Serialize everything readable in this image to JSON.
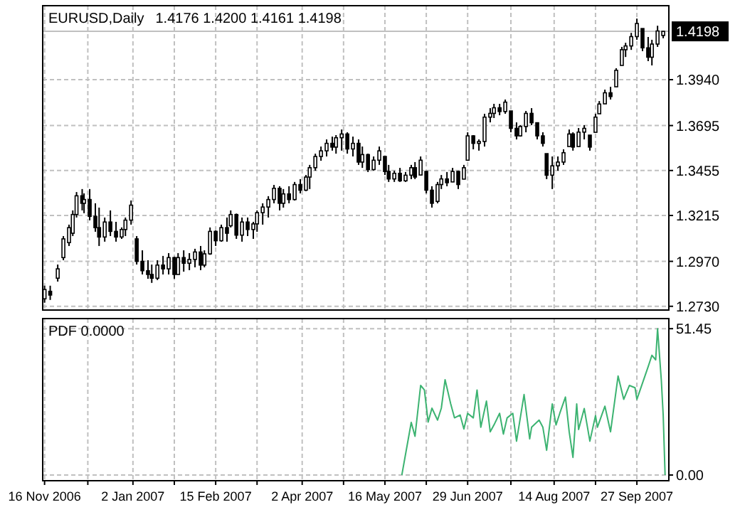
{
  "chart_data": [
    {
      "type": "candlestick",
      "title": "EURUSD,Daily",
      "subtitle": "1.4176 1.4200 1.4161 1.4198",
      "color": "#000000",
      "x": [
        "2006-11-16",
        "2006-11-19",
        "2006-11-23",
        "2006-11-26",
        "2006-11-29",
        "2006-12-01",
        "2006-12-03",
        "2006-12-06",
        "2006-12-07",
        "2006-12-10",
        "2006-12-13",
        "2006-12-15",
        "2006-12-18",
        "2006-12-21",
        "2006-12-24",
        "2006-12-27",
        "2006-12-29",
        "2007-01-01",
        "2007-01-04",
        "2007-01-07",
        "2007-01-10",
        "2007-01-12",
        "2007-01-15",
        "2007-01-18",
        "2007-01-21",
        "2007-01-24",
        "2007-01-26",
        "2007-01-29",
        "2007-02-01",
        "2007-02-04",
        "2007-02-07",
        "2007-02-09",
        "2007-02-12",
        "2007-02-15",
        "2007-02-18",
        "2007-02-21",
        "2007-02-23",
        "2007-02-26",
        "2007-03-01",
        "2007-03-04",
        "2007-03-07",
        "2007-03-09",
        "2007-03-12",
        "2007-03-15",
        "2007-03-18",
        "2007-03-21",
        "2007-03-23",
        "2007-03-26",
        "2007-03-29",
        "2007-04-01",
        "2007-04-04",
        "2007-04-06",
        "2007-04-09",
        "2007-04-12",
        "2007-04-15",
        "2007-04-18",
        "2007-04-20",
        "2007-04-23",
        "2007-04-26",
        "2007-04-29",
        "2007-05-02",
        "2007-05-04",
        "2007-05-07",
        "2007-05-10",
        "2007-05-13",
        "2007-05-16",
        "2007-05-18",
        "2007-05-21",
        "2007-05-24",
        "2007-05-27",
        "2007-05-30",
        "2007-06-01",
        "2007-06-04",
        "2007-06-07",
        "2007-06-10",
        "2007-06-13",
        "2007-06-15",
        "2007-06-18",
        "2007-06-21",
        "2007-06-24",
        "2007-06-27",
        "2007-06-29",
        "2007-07-02",
        "2007-07-05",
        "2007-07-08",
        "2007-07-11",
        "2007-07-13",
        "2007-07-16",
        "2007-07-19",
        "2007-07-22",
        "2007-07-25",
        "2007-07-27",
        "2007-07-30",
        "2007-08-02",
        "2007-08-05",
        "2007-08-08",
        "2007-08-10",
        "2007-08-13",
        "2007-08-16",
        "2007-08-19",
        "2007-08-22",
        "2007-08-24",
        "2007-08-27",
        "2007-08-30",
        "2007-09-02",
        "2007-09-05",
        "2007-09-07",
        "2007-09-10",
        "2007-09-13",
        "2007-09-16",
        "2007-09-19",
        "2007-09-21",
        "2007-09-24",
        "2007-09-27",
        "2007-09-30",
        "2007-10-03",
        "2007-10-05",
        "2007-10-08",
        "2007-10-11"
      ],
      "ohlc": [
        [
          1.277,
          1.284,
          1.2749,
          1.282
        ],
        [
          1.281,
          1.284,
          1.2764,
          1.279
        ],
        [
          1.288,
          1.2953,
          1.2862,
          1.293
        ],
        [
          1.299,
          1.3105,
          1.2976,
          1.309
        ],
        [
          1.307,
          1.3166,
          1.3052,
          1.315
        ],
        [
          1.312,
          1.3242,
          1.3105,
          1.322
        ],
        [
          1.322,
          1.334,
          1.3204,
          1.332
        ],
        [
          1.332,
          1.3356,
          1.3242,
          1.328
        ],
        [
          1.328,
          1.3333,
          1.3227,
          1.33
        ],
        [
          1.33,
          1.3356,
          1.3189,
          1.321
        ],
        [
          1.321,
          1.328,
          1.3128,
          1.315
        ],
        [
          1.315,
          1.3257,
          1.3052,
          1.31
        ],
        [
          1.31,
          1.3204,
          1.3075,
          1.318
        ],
        [
          1.318,
          1.3242,
          1.3105,
          1.313
        ],
        [
          1.313,
          1.3181,
          1.3075,
          1.31
        ],
        [
          1.31,
          1.3151,
          1.309,
          1.314
        ],
        [
          1.314,
          1.3204,
          1.3105,
          1.319
        ],
        [
          1.319,
          1.3295,
          1.3166,
          1.327
        ],
        [
          1.309,
          1.3105,
          1.2953,
          1.297
        ],
        [
          1.297,
          1.3029,
          1.29,
          1.292
        ],
        [
          1.292,
          1.2976,
          1.2877,
          1.29
        ],
        [
          1.29,
          1.2953,
          1.2855,
          1.288
        ],
        [
          1.288,
          1.2976,
          1.287,
          1.295
        ],
        [
          1.295,
          1.2999,
          1.29,
          1.293
        ],
        [
          1.293,
          1.3014,
          1.29,
          1.299
        ],
        [
          1.299,
          1.2995,
          1.2877,
          1.29
        ],
        [
          1.29,
          1.3014,
          1.29,
          1.299
        ],
        [
          1.299,
          1.3029,
          1.2915,
          1.296
        ],
        [
          1.296,
          1.3014,
          1.2923,
          1.298
        ],
        [
          1.298,
          1.3037,
          1.2938,
          1.302
        ],
        [
          1.302,
          1.3052,
          1.2923,
          1.295
        ],
        [
          1.295,
          1.3029,
          1.2938,
          1.301
        ],
        [
          1.301,
          1.3151,
          1.3005,
          1.313
        ],
        [
          1.313,
          1.3135,
          1.3052,
          1.308
        ],
        [
          1.308,
          1.3166,
          1.3075,
          1.315
        ],
        [
          1.315,
          1.3204,
          1.3075,
          1.312
        ],
        [
          1.316,
          1.3242,
          1.3151,
          1.322
        ],
        [
          1.322,
          1.3225,
          1.309,
          1.311
        ],
        [
          1.311,
          1.3204,
          1.3075,
          1.318
        ],
        [
          1.318,
          1.3204,
          1.3105,
          1.314
        ],
        [
          1.314,
          1.3181,
          1.309,
          1.317
        ],
        [
          1.317,
          1.3242,
          1.3128,
          1.323
        ],
        [
          1.323,
          1.328,
          1.3166,
          1.326
        ],
        [
          1.326,
          1.3318,
          1.3204,
          1.33
        ],
        [
          1.33,
          1.3378,
          1.328,
          1.336
        ],
        [
          1.336,
          1.3371,
          1.3242,
          1.328
        ],
        [
          1.328,
          1.3356,
          1.3257,
          1.333
        ],
        [
          1.333,
          1.3371,
          1.328,
          1.33
        ],
        [
          1.33,
          1.3394,
          1.3295,
          1.338
        ],
        [
          1.338,
          1.3409,
          1.3333,
          1.335
        ],
        [
          1.335,
          1.3431,
          1.3345,
          1.342
        ],
        [
          1.342,
          1.3485,
          1.3356,
          1.347
        ],
        [
          1.347,
          1.3545,
          1.3454,
          1.353
        ],
        [
          1.353,
          1.3583,
          1.3507,
          1.356
        ],
        [
          1.356,
          1.3621,
          1.353,
          1.36
        ],
        [
          1.36,
          1.3636,
          1.3561,
          1.358
        ],
        [
          1.358,
          1.3644,
          1.3545,
          1.363
        ],
        [
          1.363,
          1.3674,
          1.3561,
          1.365
        ],
        [
          1.365,
          1.3659,
          1.3545,
          1.357
        ],
        [
          1.357,
          1.3636,
          1.353,
          1.36
        ],
        [
          1.36,
          1.3621,
          1.3485,
          1.35
        ],
        [
          1.35,
          1.3583,
          1.3469,
          1.354
        ],
        [
          1.354,
          1.3545,
          1.3447,
          1.346
        ],
        [
          1.346,
          1.353,
          1.3455,
          1.351
        ],
        [
          1.351,
          1.3583,
          1.3485,
          1.356
        ],
        [
          1.353,
          1.353,
          1.3431,
          1.345
        ],
        [
          1.345,
          1.3485,
          1.3394,
          1.341
        ],
        [
          1.341,
          1.3454,
          1.3394,
          1.344
        ],
        [
          1.344,
          1.3469,
          1.3394,
          1.34
        ],
        [
          1.34,
          1.3447,
          1.3394,
          1.343
        ],
        [
          1.343,
          1.3485,
          1.3409,
          1.347
        ],
        [
          1.347,
          1.35,
          1.3409,
          1.342
        ],
        [
          1.3431,
          1.353,
          1.3431,
          1.351
        ],
        [
          1.345,
          1.3454,
          1.3333,
          1.335
        ],
        [
          1.335,
          1.3371,
          1.3257,
          1.328
        ],
        [
          1.329,
          1.3394,
          1.328,
          1.338
        ],
        [
          1.338,
          1.3431,
          1.3356,
          1.341
        ],
        [
          1.341,
          1.3447,
          1.3371,
          1.339
        ],
        [
          1.3394,
          1.3469,
          1.3394,
          1.345
        ],
        [
          1.345,
          1.3454,
          1.3356,
          1.338
        ],
        [
          1.3409,
          1.3485,
          1.3409,
          1.347
        ],
        [
          1.351,
          1.3659,
          1.3507,
          1.364
        ],
        [
          1.364,
          1.3644,
          1.3568,
          1.36
        ],
        [
          1.36,
          1.3621,
          1.3561,
          1.361
        ],
        [
          1.361,
          1.3758,
          1.3583,
          1.374
        ],
        [
          1.374,
          1.3788,
          1.3712,
          1.376
        ],
        [
          1.376,
          1.3811,
          1.3735,
          1.379
        ],
        [
          1.379,
          1.3811,
          1.375,
          1.377
        ],
        [
          1.377,
          1.3834,
          1.3758,
          1.382
        ],
        [
          1.3773,
          1.3773,
          1.3659,
          1.368
        ],
        [
          1.368,
          1.3712,
          1.3621,
          1.364
        ],
        [
          1.364,
          1.3697,
          1.3636,
          1.369
        ],
        [
          1.369,
          1.3773,
          1.3659,
          1.376
        ],
        [
          1.376,
          1.3788,
          1.3697,
          1.371
        ],
        [
          1.371,
          1.3712,
          1.3621,
          1.364
        ],
        [
          1.364,
          1.3659,
          1.3583,
          1.36
        ],
        [
          1.3545,
          1.3545,
          1.3409,
          1.343
        ],
        [
          1.343,
          1.353,
          1.3356,
          1.348
        ],
        [
          1.348,
          1.353,
          1.3454,
          1.35
        ],
        [
          1.35,
          1.3568,
          1.3485,
          1.355
        ],
        [
          1.3583,
          1.3674,
          1.3583,
          1.365
        ],
        [
          1.365,
          1.3659,
          1.3561,
          1.358
        ],
        [
          1.3583,
          1.3682,
          1.3583,
          1.366
        ],
        [
          1.366,
          1.3697,
          1.3621,
          1.368
        ],
        [
          1.3644,
          1.3644,
          1.3561,
          1.358
        ],
        [
          1.3659,
          1.3758,
          1.3659,
          1.374
        ],
        [
          1.3758,
          1.3826,
          1.3758,
          1.381
        ],
        [
          1.3811,
          1.3887,
          1.3811,
          1.387
        ],
        [
          1.387,
          1.3902,
          1.3834,
          1.385
        ],
        [
          1.3902,
          1.4001,
          1.3902,
          1.399
        ],
        [
          1.4016,
          1.4115,
          1.4016,
          1.41
        ],
        [
          1.41,
          1.4137,
          1.4061,
          1.412
        ],
        [
          1.412,
          1.419,
          1.4099,
          1.417
        ],
        [
          1.417,
          1.4266,
          1.4153,
          1.424
        ],
        [
          1.4213,
          1.4213,
          1.4092,
          1.411
        ],
        [
          1.411,
          1.4168,
          1.4039,
          1.406
        ],
        [
          1.406,
          1.4153,
          1.4016,
          1.413
        ],
        [
          1.413,
          1.4228,
          1.4115,
          1.42
        ],
        [
          1.4176,
          1.42,
          1.4161,
          1.4198
        ]
      ],
      "xlim": [
        "2006-11-15",
        "2007-10-14"
      ],
      "ylim": [
        1.271,
        1.4335
      ],
      "xticks": [
        {
          "value": "2006-11-16",
          "label": null
        },
        {
          "value": "2006-12-09",
          "label": null
        },
        {
          "value": "2007-01-02",
          "label": null
        },
        {
          "value": "2007-01-24",
          "label": null
        },
        {
          "value": "2007-02-15",
          "label": null
        },
        {
          "value": "2007-03-09",
          "label": null
        },
        {
          "value": "2007-04-02",
          "label": null
        },
        {
          "value": "2007-04-24",
          "label": null
        },
        {
          "value": "2007-05-16",
          "label": null
        },
        {
          "value": "2007-06-07",
          "label": null
        },
        {
          "value": "2007-06-29",
          "label": null
        },
        {
          "value": "2007-07-22",
          "label": null
        },
        {
          "value": "2007-08-14",
          "label": null
        },
        {
          "value": "2007-09-05",
          "label": null
        },
        {
          "value": "2007-09-27",
          "label": null
        }
      ],
      "yticks": [
        {
          "value": 1.273,
          "label": "1.2730"
        },
        {
          "value": 1.297,
          "label": "1.2970"
        },
        1.3215,
        1.3455,
        1.3695,
        {
          "value": 1.394,
          "label": "1.3940"
        }
      ],
      "grid": true,
      "tick_labels": "y",
      "ref_lines": [
        {
          "axis": "y",
          "value": 1.4198,
          "label": "1.4198",
          "color": "#c0c0c0"
        }
      ]
    },
    {
      "type": "line",
      "title": "PDF 0.0000",
      "series": [
        {
          "color": "#3cb371",
          "x": [
            "2007-05-25",
            "2007-05-30",
            "2007-06-01",
            "2007-06-04",
            "2007-06-06",
            "2007-06-08",
            "2007-06-10",
            "2007-06-13",
            "2007-06-15",
            "2007-06-17",
            "2007-06-20",
            "2007-06-22",
            "2007-06-25",
            "2007-06-27",
            "2007-06-29",
            "2007-07-02",
            "2007-07-04",
            "2007-07-06",
            "2007-07-09",
            "2007-07-11",
            "2007-07-13",
            "2007-07-16",
            "2007-07-18",
            "2007-07-20",
            "2007-07-23",
            "2007-07-25",
            "2007-07-29",
            "2007-08-01",
            "2007-08-02",
            "2007-08-06",
            "2007-08-08",
            "2007-08-10",
            "2007-08-13",
            "2007-08-15",
            "2007-08-17",
            "2007-08-20",
            "2007-08-22",
            "2007-08-24",
            "2007-08-26",
            "2007-08-27",
            "2007-08-30",
            "2007-09-02",
            "2007-09-05",
            "2007-09-06",
            "2007-09-10",
            "2007-09-13",
            "2007-09-17",
            "2007-09-20",
            "2007-09-23",
            "2007-09-26",
            "2007-09-27",
            "2007-10-03",
            "2007-10-05",
            "2007-10-07",
            "2007-10-08",
            "2007-10-10",
            "2007-10-11",
            "2007-10-12"
          ],
          "values": [
            0,
            18.5,
            13.6,
            31.5,
            29.9,
            18.6,
            23.5,
            19.3,
            23.5,
            33.5,
            25,
            20.1,
            21.1,
            16.2,
            21.7,
            20.1,
            29.9,
            16.8,
            26,
            15.2,
            17.6,
            21.7,
            14.4,
            20.1,
            21.7,
            11.9,
            28.3,
            12.7,
            16.8,
            19.3,
            16.8,
            8.7,
            25,
            17.6,
            21.7,
            27.4,
            15.2,
            6.2,
            25,
            16,
            23.4,
            11.9,
            20.9,
            16.8,
            24.2,
            15.2,
            34.8,
            26.6,
            31.5,
            30.7,
            26.6,
            38.1,
            42.1,
            40.5,
            51.45,
            33.3,
            21,
            0
          ]
        }
      ],
      "xlim": [
        "2006-11-15",
        "2007-10-14"
      ],
      "ylim": [
        -2,
        55
      ],
      "xticks": [
        {
          "value": "2006-11-16",
          "label": "16 Nov 2006"
        },
        {
          "value": "2006-12-09",
          "label": null
        },
        {
          "value": "2007-01-02",
          "label": "2 Jan 2007"
        },
        {
          "value": "2007-01-24",
          "label": null
        },
        {
          "value": "2007-02-15",
          "label": "15 Feb 2007"
        },
        {
          "value": "2007-03-09",
          "label": null
        },
        {
          "value": "2007-04-02",
          "label": "2 Apr 2007"
        },
        {
          "value": "2007-04-24",
          "label": null
        },
        {
          "value": "2007-05-16",
          "label": "16 May 2007"
        },
        {
          "value": "2007-06-07",
          "label": null
        },
        {
          "value": "2007-06-29",
          "label": "29 Jun 2007"
        },
        {
          "value": "2007-07-22",
          "label": null
        },
        {
          "value": "2007-08-14",
          "label": "14 Aug 2007"
        },
        {
          "value": "2007-09-05",
          "label": null
        },
        {
          "value": "2007-09-27",
          "label": "27 Sep 2007"
        }
      ],
      "yticks": [
        {
          "value": 0,
          "label": "0.00"
        },
        51.45
      ],
      "grid": true
    }
  ]
}
